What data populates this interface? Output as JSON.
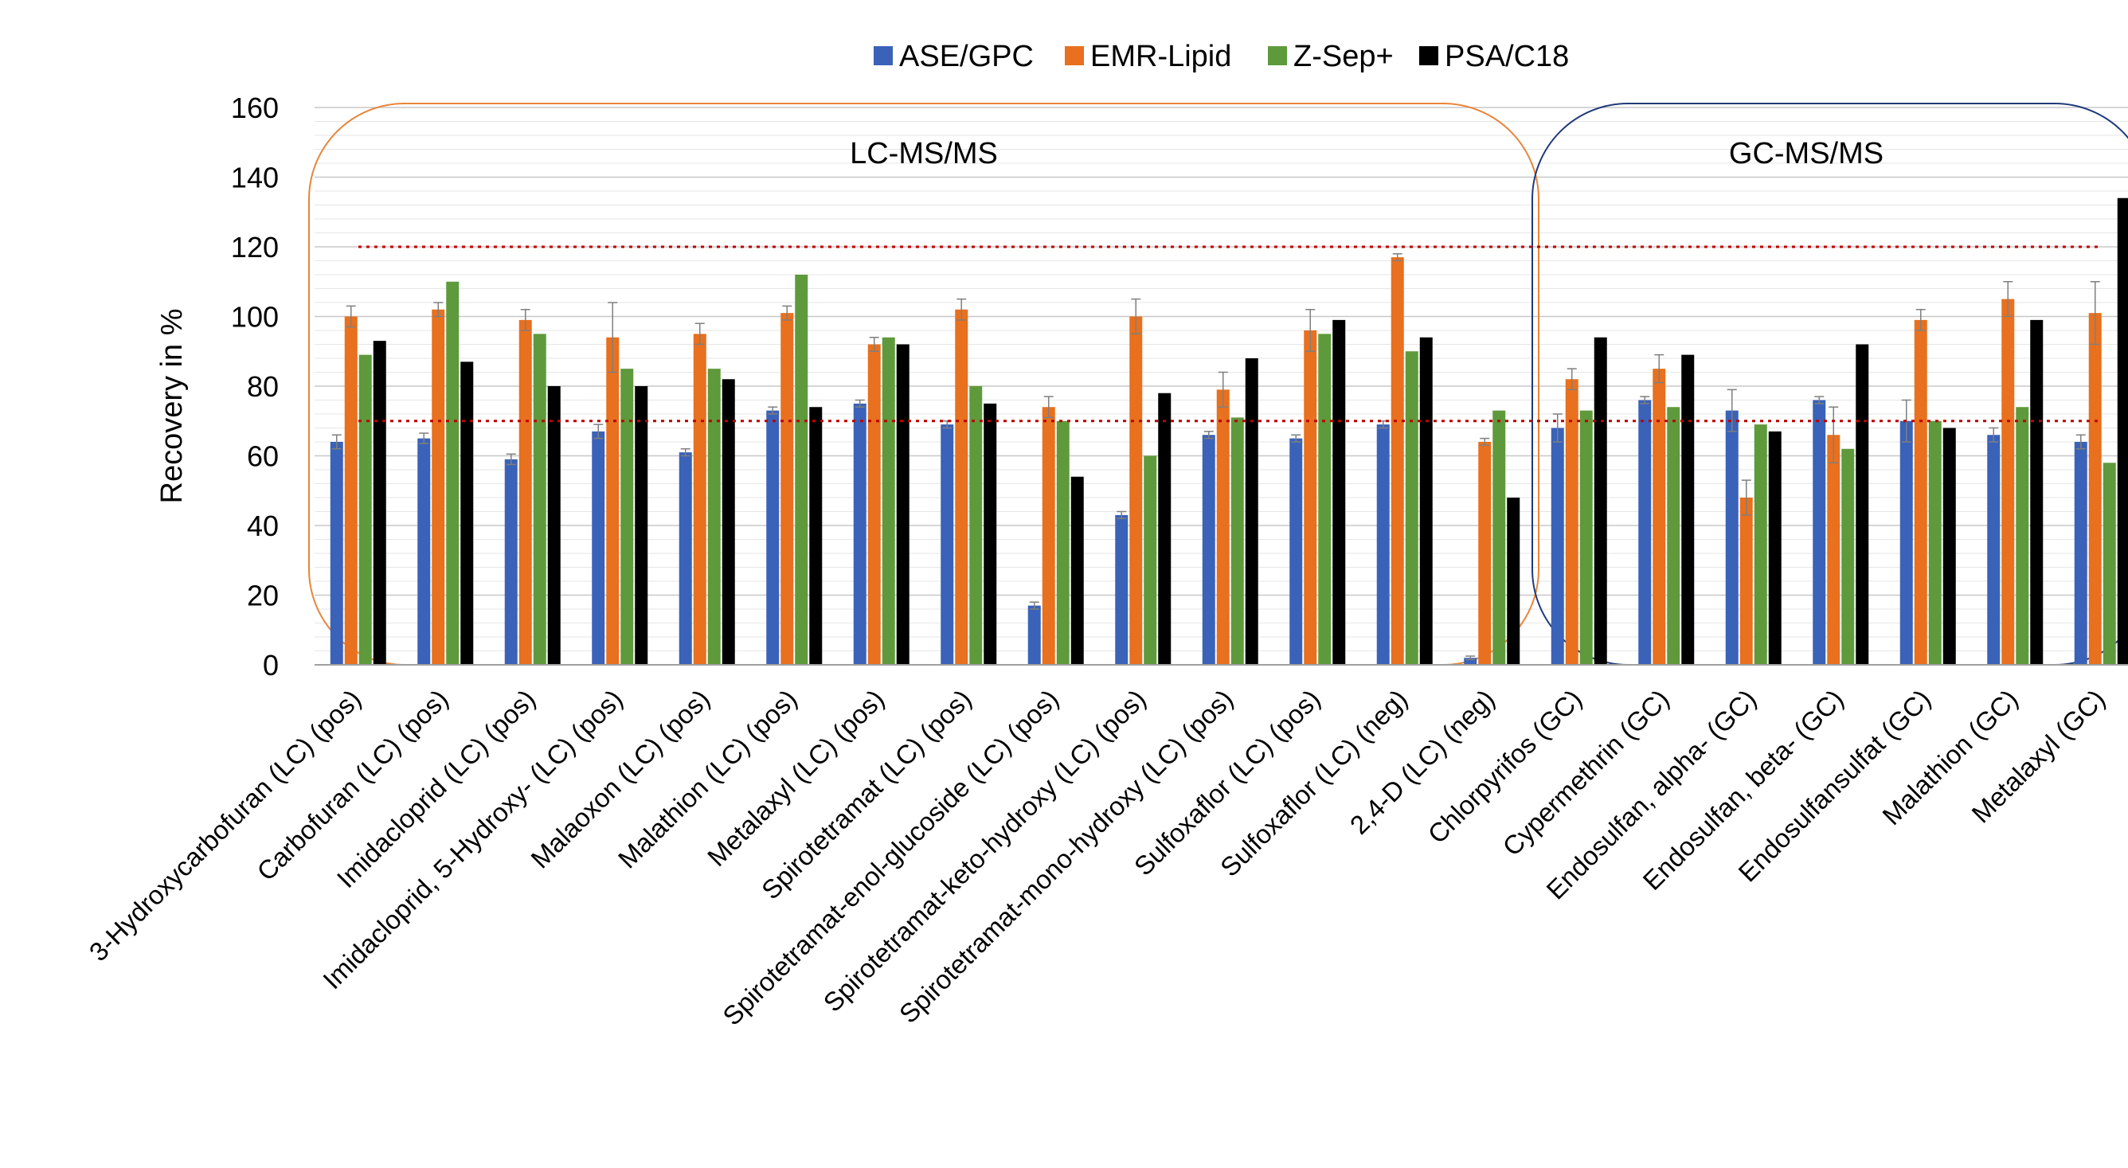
{
  "chart_data": {
    "type": "bar",
    "ylabel": "Recovery in %",
    "xlabel": "",
    "ylim": [
      0,
      160
    ],
    "yticks": [
      0,
      20,
      40,
      60,
      80,
      100,
      120,
      140,
      160
    ],
    "grid": true,
    "legend_position": "top-center",
    "reference_lines": [
      70,
      120
    ],
    "reference_line_color": "#c00000",
    "groups": [
      {
        "label": "LC-MS/MS",
        "from": 0,
        "to": 13,
        "color": "#e8853a"
      },
      {
        "label": "GC-MS/MS",
        "from": 14,
        "to": 20,
        "color": "#1f3a7a"
      }
    ],
    "categories": [
      "3-Hydroxycarbofuran (LC) (pos)",
      "Carbofuran (LC) (pos)",
      "Imidacloprid (LC) (pos)",
      "Imidacloprid, 5-Hydroxy- (LC) (pos)",
      "Malaoxon (LC) (pos)",
      "Malathion (LC) (pos)",
      "Metalaxyl (LC) (pos)",
      "Spirotetramat (LC) (pos)",
      "Spirotetramat-enol-glucoside (LC) (pos)",
      "Spirotetramat-keto-hydroxy (LC) (pos)",
      "Spirotetramat-mono-hydroxy (LC) (pos)",
      "Sulfoxaflor (LC) (pos)",
      "Sulfoxaflor (LC) (neg)",
      "2,4-D (LC) (neg)",
      "Chlorpyrifos (GC)",
      "Cypermethrin (GC)",
      "Endosulfan, alpha- (GC)",
      "Endosulfan, beta- (GC)",
      "Endosulfansulfat (GC)",
      "Malathion (GC)",
      "Metalaxyl (GC)"
    ],
    "series": [
      {
        "name": "ASE/GPC",
        "color": "#3a62b8",
        "values": [
          64,
          65,
          59,
          67,
          61,
          73,
          75,
          69,
          17,
          43,
          66,
          65,
          69,
          2,
          68,
          76,
          73,
          76,
          70,
          66,
          64
        ],
        "errors": [
          2,
          1.5,
          1.5,
          2,
          1,
          1,
          1,
          1,
          1,
          1,
          1,
          1,
          1,
          0.5,
          4,
          1,
          6,
          1,
          6,
          2,
          2
        ]
      },
      {
        "name": "EMR-Lipid",
        "color": "#e8701e",
        "values": [
          100,
          102,
          99,
          94,
          95,
          101,
          92,
          102,
          74,
          100,
          79,
          96,
          117,
          64,
          82,
          85,
          48,
          66,
          99,
          105,
          101
        ],
        "errors": [
          3,
          2,
          3,
          10,
          3,
          2,
          2,
          3,
          3,
          5,
          5,
          6,
          1,
          1,
          3,
          4,
          5,
          8,
          3,
          5,
          9
        ]
      },
      {
        "name": "Z-Sep+",
        "color": "#5e9a3c",
        "values": [
          89,
          110,
          95,
          85,
          85,
          112,
          94,
          80,
          70,
          60,
          71,
          95,
          90,
          73,
          73,
          74,
          69,
          62,
          70,
          74,
          58
        ],
        "errors": [
          0,
          0,
          0,
          0,
          0,
          0,
          0,
          0,
          0,
          0,
          0,
          0,
          0,
          0,
          0,
          0,
          0,
          0,
          0,
          0,
          0
        ]
      },
      {
        "name": "PSA/C18",
        "color": "#000000",
        "values": [
          93,
          87,
          80,
          80,
          82,
          74,
          92,
          75,
          54,
          78,
          88,
          99,
          94,
          48,
          94,
          89,
          67,
          92,
          68,
          99,
          134
        ],
        "errors": [
          0,
          0,
          0,
          0,
          0,
          0,
          0,
          0,
          0,
          0,
          0,
          0,
          0,
          0,
          0,
          0,
          0,
          0,
          0,
          0,
          0
        ]
      }
    ]
  }
}
